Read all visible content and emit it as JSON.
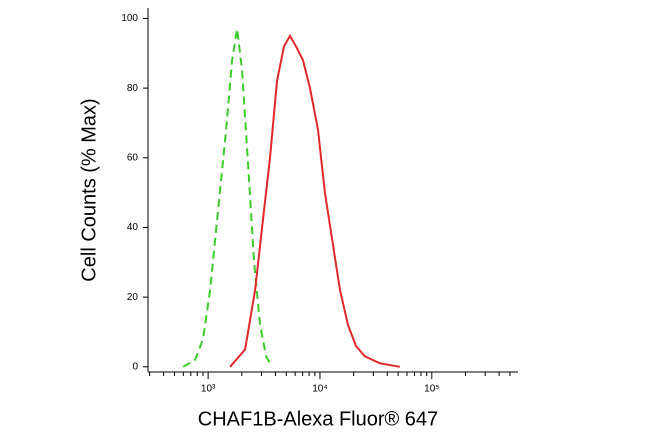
{
  "chart_data": {
    "type": "line",
    "xlabel": "CHAF1B-Alexa Fluor® 647",
    "ylabel": "Cell Counts (% Max)",
    "xscale": "log",
    "xlim": [
      290,
      590000
    ],
    "xticks": [
      {
        "value": 1000,
        "label": "10³"
      },
      {
        "value": 10000,
        "label": "10⁴"
      },
      {
        "value": 100000,
        "label": "10⁵"
      }
    ],
    "xminorticks": [
      300,
      400,
      500,
      600,
      700,
      800,
      900,
      2000,
      3000,
      4000,
      5000,
      6000,
      7000,
      8000,
      9000,
      20000,
      30000,
      40000,
      50000,
      60000,
      70000,
      80000,
      90000,
      200000,
      300000,
      400000,
      500000
    ],
    "ylim": [
      -1.5,
      103
    ],
    "yticks": [
      0,
      20,
      40,
      60,
      80,
      100
    ],
    "series": [
      {
        "color": "#3ccc2a",
        "dashed": true,
        "x": [
          598,
          765,
          902,
          1042,
          1228,
          1448,
          1638,
          1815,
          2012,
          2276,
          2575,
          2914,
          3297,
          3730
        ],
        "values": [
          0,
          2,
          8,
          22,
          45,
          68,
          88,
          97,
          85,
          58,
          30,
          12,
          3,
          0
        ]
      },
      {
        "color": "#e0282a",
        "dashed": false,
        "x": [
          1571,
          2139,
          2629,
          3036,
          3578,
          4131,
          4772,
          5395,
          6104,
          7048,
          8146,
          9597,
          11080,
          13070,
          15100,
          17800,
          20950,
          25200,
          34360,
          51800
        ],
        "values": [
          0,
          5,
          22,
          40,
          60,
          82,
          92,
          95,
          92,
          88,
          80,
          68,
          50,
          35,
          22,
          12,
          6,
          3,
          1,
          0
        ]
      }
    ]
  }
}
